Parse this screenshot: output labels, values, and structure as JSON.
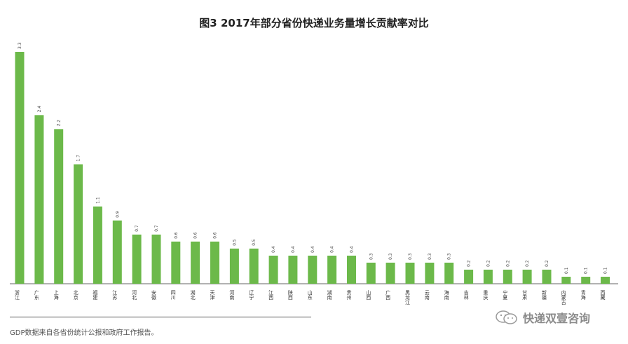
{
  "chart_data": {
    "type": "bar",
    "title": "图3 2017年部分省份快递业务量增长贡献率对比",
    "categories": [
      "浙江",
      "广东",
      "上海",
      "北京",
      "福建",
      "江苏",
      "河北",
      "安徽",
      "四川",
      "湖北",
      "天津",
      "河南",
      "辽宁",
      "江西",
      "陕西",
      "山东",
      "湖南",
      "贵州",
      "山西",
      "广西",
      "黑龙江",
      "云南",
      "海南",
      "吉林",
      "重庆",
      "宁夏",
      "甘肃",
      "新疆",
      "内蒙古",
      "青海",
      "西藏"
    ],
    "values": [
      3.3,
      2.4,
      2.2,
      1.7,
      1.1,
      0.9,
      0.7,
      0.7,
      0.6,
      0.6,
      0.6,
      0.5,
      0.5,
      0.4,
      0.4,
      0.4,
      0.4,
      0.4,
      0.3,
      0.3,
      0.3,
      0.3,
      0.3,
      0.2,
      0.2,
      0.2,
      0.2,
      0.2,
      0.1,
      0.1,
      0.1
    ],
    "value_labels": [
      "3.3",
      "2.4",
      "2.2",
      "1.7",
      "1.1",
      "0.9",
      "0.7",
      "0.7",
      "0.6",
      "0.6",
      "0.6",
      "0.5",
      "0.5",
      "0.4",
      "0.4",
      "0.4",
      "0.4",
      "0.4",
      "0.3",
      "0.3",
      "0.3",
      "0.3",
      "0.3",
      "0.2",
      "0.2",
      "0.2",
      "0.2",
      "0.2",
      "0.1",
      "0.1",
      "0.1"
    ],
    "ylim": [
      0,
      3.3
    ],
    "xlabel": "",
    "ylabel": "",
    "grid": false,
    "bar_color": "#6cb94a"
  },
  "footer": {
    "source_note": "GDP数据来自各省份统计公报和政府工作报告。",
    "watermark_text": "快递双壹咨询",
    "watermark_icon": "wechat-icon"
  }
}
